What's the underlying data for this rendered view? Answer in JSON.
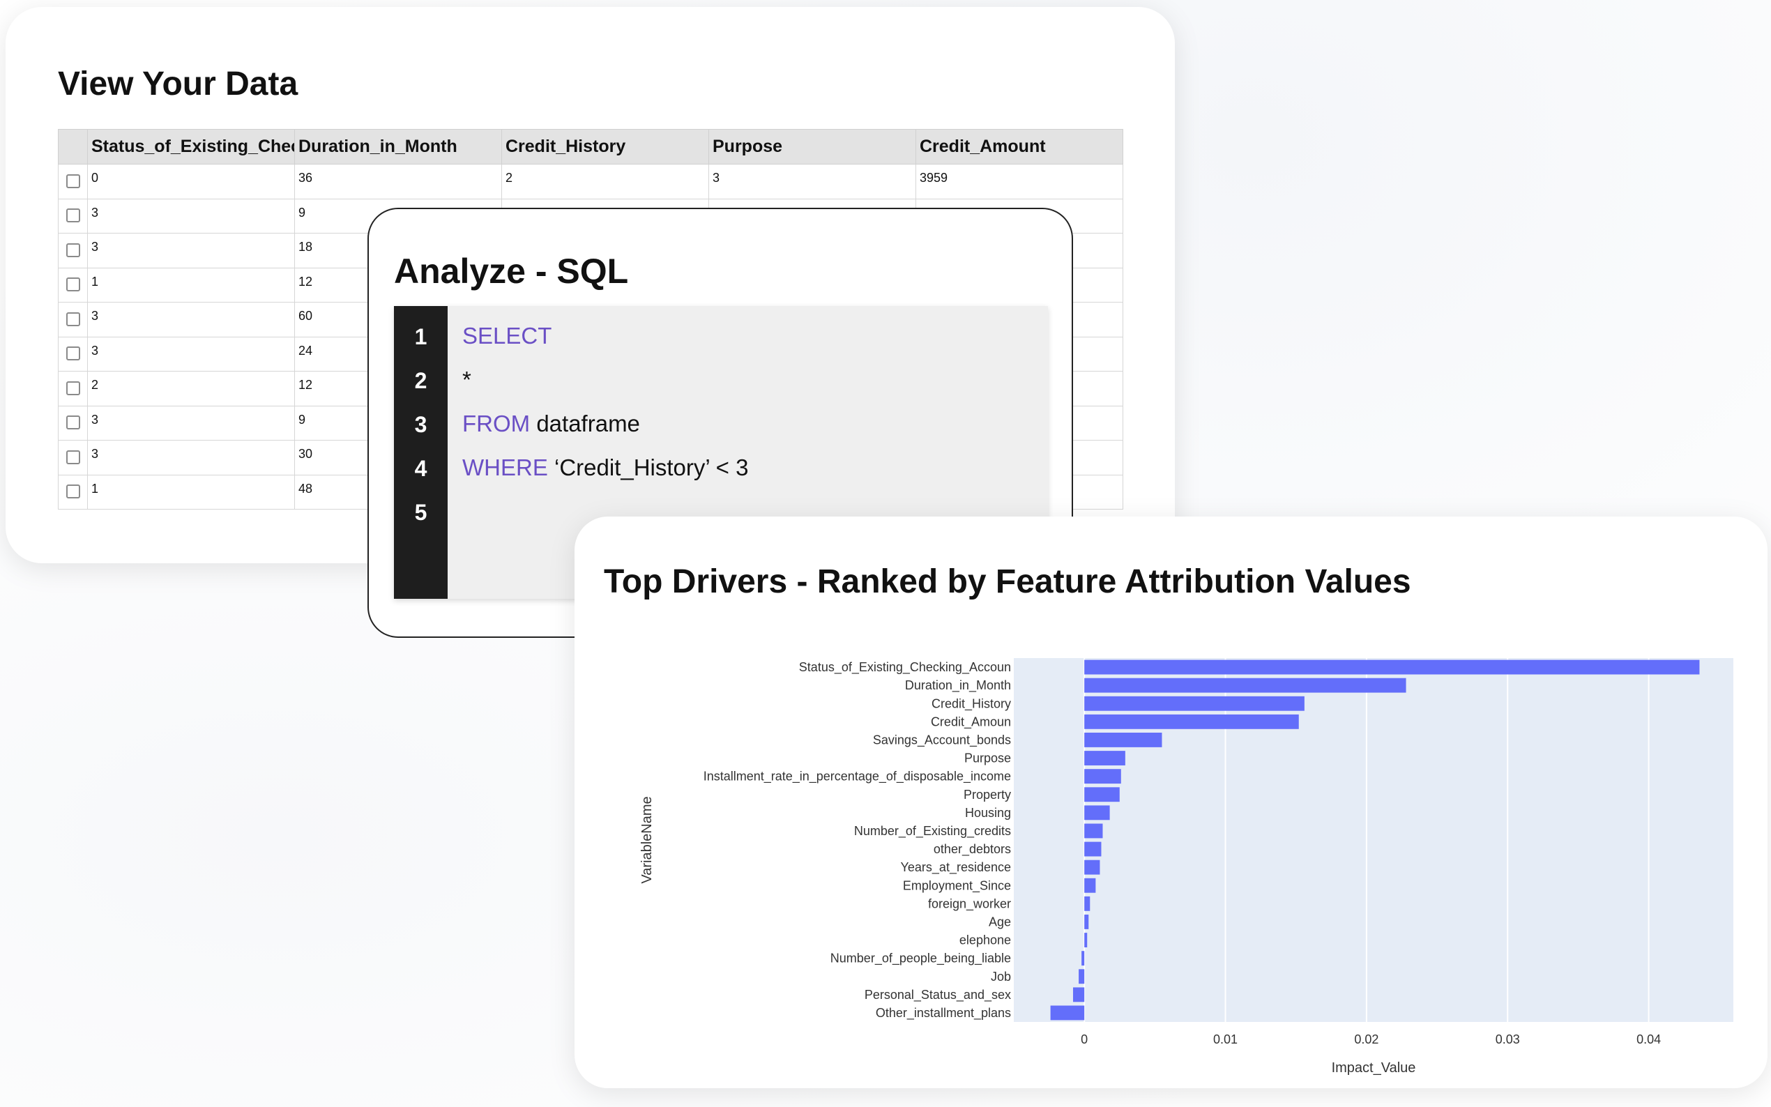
{
  "data_card": {
    "title": "View Your Data",
    "columns": [
      "Status_of_Existing_Checking_Account",
      "Duration_in_Month",
      "Credit_History",
      "Purpose",
      "Credit_Amount"
    ],
    "rows": [
      [
        "0",
        "36",
        "2",
        "3",
        "3959"
      ],
      [
        "3",
        "9",
        "",
        "",
        ""
      ],
      [
        "3",
        "18",
        "",
        "",
        ""
      ],
      [
        "1",
        "12",
        "",
        "",
        ""
      ],
      [
        "3",
        "60",
        "",
        "",
        ""
      ],
      [
        "3",
        "24",
        "",
        "",
        ""
      ],
      [
        "2",
        "12",
        "",
        "",
        ""
      ],
      [
        "3",
        "9",
        "",
        "",
        ""
      ],
      [
        "3",
        "30",
        "",
        "",
        ""
      ],
      [
        "1",
        "48",
        "",
        "",
        ""
      ]
    ]
  },
  "sql_card": {
    "title": "Analyze - SQL",
    "lines": [
      {
        "num": "1",
        "kw": "SELECT",
        "rest": ""
      },
      {
        "num": "2",
        "kw": "",
        "rest": "*"
      },
      {
        "num": "3",
        "kw": "FROM",
        "rest": " dataframe"
      },
      {
        "num": "4",
        "kw": "WHERE",
        "rest": " ‘Credit_History’ < 3"
      },
      {
        "num": "5",
        "kw": "",
        "rest": ""
      }
    ],
    "keyword_color": "#6a4fc5"
  },
  "chart_card": {
    "title": "Top Drivers - Ranked by Feature Attribution Values"
  },
  "chart_data": {
    "type": "bar",
    "orientation": "horizontal",
    "categories": [
      "Status_of_Existing_Checking_Accoun",
      "Duration_in_Month",
      "Credit_History",
      "Credit_Amoun",
      "Savings_Account_bonds",
      "Purpose",
      "Installment_rate_in_percentage_of_disposable_income",
      "Property",
      "Housing",
      "Number_of_Existing_credits",
      "other_debtors",
      "Years_at_residence",
      "Employment_Since",
      "foreign_worker",
      "Age",
      "elephone",
      "Number_of_people_being_liable",
      "Job",
      "Personal_Status_and_sex",
      "Other_installment_plans"
    ],
    "values": [
      0.0436,
      0.0228,
      0.0156,
      0.0152,
      0.0055,
      0.0029,
      0.0026,
      0.0025,
      0.0018,
      0.0013,
      0.0012,
      0.0011,
      0.0008,
      0.0004,
      0.0003,
      0.0002,
      -0.0002,
      -0.0004,
      -0.0008,
      -0.0024
    ],
    "xlabel": "Impact_Value",
    "ylabel": "VariableName",
    "xticks": [
      0,
      0.01,
      0.02,
      0.03,
      0.04
    ],
    "xtick_labels": [
      "0",
      "0.01",
      "0.02",
      "0.03",
      "0.04"
    ],
    "xlim": [
      -0.005,
      0.046
    ],
    "bar_color": "#636efa",
    "plot_bg": "#e5ecf6",
    "grid": true
  }
}
